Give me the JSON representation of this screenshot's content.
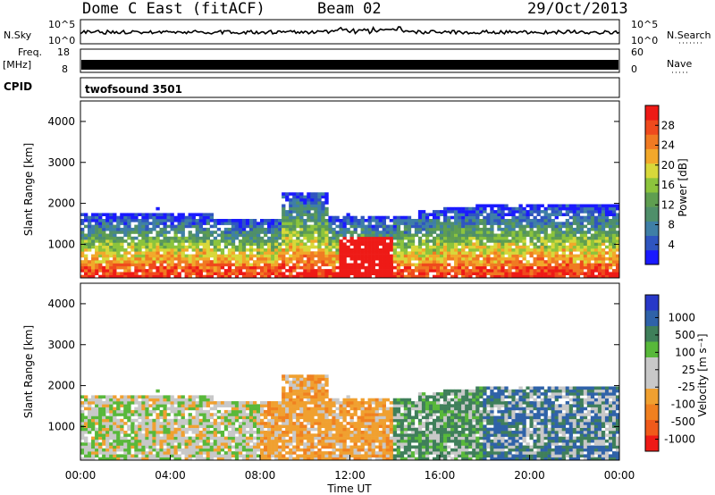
{
  "header": {
    "title_left": "Dome C East (fitACF)",
    "title_center": "Beam 02",
    "title_right": "29/Oct/2013"
  },
  "top_panels": {
    "nsky_label": "N.Sky",
    "nsky_ticks": [
      "10^5",
      "10^0"
    ],
    "nsearch_label": "N.Search",
    "nsearch_ticks": [
      "10^5",
      "10^0"
    ],
    "freq_label_1": "Freq.",
    "freq_label_2": "[MHz]",
    "freq_ticks": [
      "18",
      "8"
    ],
    "nave_label": "Nave",
    "nave_ticks": [
      "60",
      "0"
    ],
    "cpid_label": "CPID",
    "cpid_value": "twofsound 3501"
  },
  "chart_data": [
    {
      "type": "heatmap",
      "name": "power",
      "ylabel": "Slant Range [km]",
      "ylim": [
        180,
        4500
      ],
      "yticks": [
        "1000",
        "2000",
        "3000",
        "4000"
      ],
      "xlim": [
        0,
        24
      ],
      "colorbar_label": "Power [dB]",
      "colorbar_ticks": [
        "4",
        "8",
        "12",
        "16",
        "20",
        "24",
        "28"
      ],
      "colorbar_colors": [
        "#1a1aff",
        "#2f55c0",
        "#3f7fa6",
        "#4f8f6a",
        "#5f9e50",
        "#8cc43c",
        "#d8d83a",
        "#f2a82a",
        "#f07a22",
        "#ef4a1d",
        "#ee1a16"
      ]
    },
    {
      "type": "heatmap",
      "name": "velocity",
      "ylabel": "Slant Range [km]",
      "ylim": [
        180,
        4500
      ],
      "yticks": [
        "1000",
        "2000",
        "3000",
        "4000"
      ],
      "xlim": [
        0,
        24
      ],
      "xlabel": "Time UT",
      "xticks": [
        "00:00",
        "04:00",
        "08:00",
        "12:00",
        "16:00",
        "20:00",
        "00:00"
      ],
      "colorbar_label": "Velocity [m s⁻¹]",
      "colorbar_ticks": [
        "1000",
        "500",
        "100",
        "25",
        "-25",
        "-100",
        "-500",
        "-1000"
      ],
      "colorbar_colors": [
        "#2838c8",
        "#2f62a8",
        "#3f7f5a",
        "#58b83a",
        "#c8c8c8",
        "#c8c8c8",
        "#f0a030",
        "#f08020",
        "#f05a1a",
        "#ee1a16"
      ]
    }
  ]
}
